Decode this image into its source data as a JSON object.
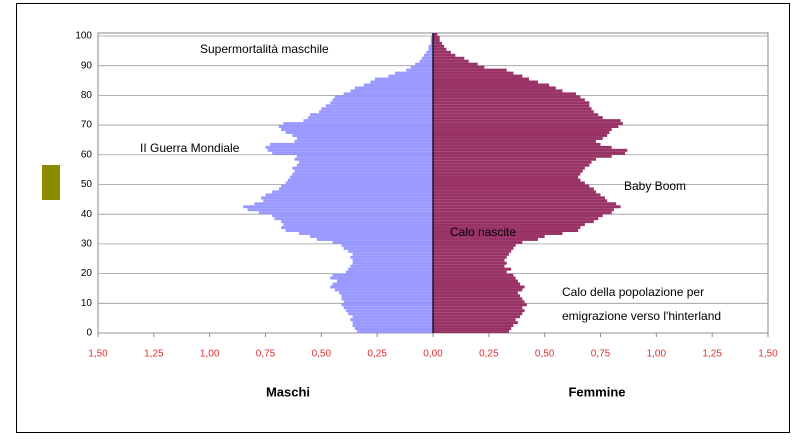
{
  "chart_data": {
    "type": "pyramid",
    "y": [
      0,
      1,
      2,
      3,
      4,
      5,
      6,
      7,
      8,
      9,
      10,
      11,
      12,
      13,
      14,
      15,
      16,
      17,
      18,
      19,
      20,
      21,
      22,
      23,
      24,
      25,
      26,
      27,
      28,
      29,
      30,
      31,
      32,
      33,
      34,
      35,
      36,
      37,
      38,
      39,
      40,
      41,
      42,
      43,
      44,
      45,
      46,
      47,
      48,
      49,
      50,
      51,
      52,
      53,
      54,
      55,
      56,
      57,
      58,
      59,
      60,
      61,
      62,
      63,
      64,
      65,
      66,
      67,
      68,
      69,
      70,
      71,
      72,
      73,
      74,
      75,
      76,
      77,
      78,
      79,
      80,
      81,
      82,
      83,
      84,
      85,
      86,
      87,
      88,
      89,
      90,
      91,
      92,
      93,
      94,
      95,
      96,
      97,
      98,
      99,
      100
    ],
    "series": [
      {
        "name": "Maschi",
        "color": "#9999ff",
        "side": "left",
        "values": [
          0.34,
          0.35,
          0.36,
          0.36,
          0.37,
          0.36,
          0.38,
          0.39,
          0.4,
          0.41,
          0.4,
          0.41,
          0.41,
          0.42,
          0.44,
          0.46,
          0.45,
          0.43,
          0.46,
          0.45,
          0.39,
          0.38,
          0.37,
          0.36,
          0.36,
          0.37,
          0.36,
          0.38,
          0.4,
          0.41,
          0.45,
          0.52,
          0.55,
          0.6,
          0.66,
          0.68,
          0.67,
          0.68,
          0.71,
          0.72,
          0.78,
          0.83,
          0.85,
          0.8,
          0.76,
          0.77,
          0.75,
          0.72,
          0.69,
          0.68,
          0.66,
          0.65,
          0.64,
          0.63,
          0.62,
          0.63,
          0.61,
          0.6,
          0.62,
          0.61,
          0.72,
          0.74,
          0.75,
          0.73,
          0.62,
          0.61,
          0.63,
          0.66,
          0.68,
          0.69,
          0.67,
          0.58,
          0.56,
          0.55,
          0.51,
          0.5,
          0.48,
          0.46,
          0.45,
          0.44,
          0.4,
          0.37,
          0.35,
          0.31,
          0.28,
          0.26,
          0.2,
          0.17,
          0.12,
          0.1,
          0.08,
          0.06,
          0.05,
          0.04,
          0.03,
          0.02,
          0.02,
          0.01,
          0.01,
          0.01,
          0.005
        ]
      },
      {
        "name": "Femmine",
        "color": "#993366",
        "side": "right",
        "values": [
          0.34,
          0.35,
          0.36,
          0.38,
          0.37,
          0.39,
          0.4,
          0.41,
          0.4,
          0.42,
          0.41,
          0.4,
          0.39,
          0.38,
          0.4,
          0.41,
          0.39,
          0.38,
          0.37,
          0.36,
          0.33,
          0.35,
          0.32,
          0.33,
          0.32,
          0.33,
          0.34,
          0.35,
          0.36,
          0.37,
          0.4,
          0.47,
          0.5,
          0.58,
          0.65,
          0.66,
          0.68,
          0.72,
          0.74,
          0.76,
          0.8,
          0.81,
          0.84,
          0.82,
          0.78,
          0.77,
          0.75,
          0.73,
          0.72,
          0.7,
          0.68,
          0.66,
          0.65,
          0.66,
          0.67,
          0.68,
          0.7,
          0.71,
          0.73,
          0.8,
          0.86,
          0.87,
          0.8,
          0.75,
          0.73,
          0.76,
          0.78,
          0.79,
          0.8,
          0.83,
          0.85,
          0.84,
          0.76,
          0.74,
          0.72,
          0.71,
          0.7,
          0.7,
          0.68,
          0.66,
          0.64,
          0.58,
          0.55,
          0.52,
          0.47,
          0.43,
          0.4,
          0.36,
          0.33,
          0.23,
          0.2,
          0.16,
          0.14,
          0.1,
          0.08,
          0.06,
          0.05,
          0.04,
          0.03,
          0.03,
          0.02
        ]
      }
    ],
    "xlim": [
      -1.5,
      1.5
    ],
    "xticks": [
      {
        "value": -1.5,
        "label": "1,50"
      },
      {
        "value": -1.25,
        "label": "1,25"
      },
      {
        "value": -1.0,
        "label": "1,00"
      },
      {
        "value": -0.75,
        "label": "0,75"
      },
      {
        "value": -0.5,
        "label": "0,50"
      },
      {
        "value": -0.25,
        "label": "0,25"
      },
      {
        "value": 0,
        "label": "0,00"
      },
      {
        "value": 0.25,
        "label": "0,25"
      },
      {
        "value": 0.5,
        "label": "0,50"
      },
      {
        "value": 0.75,
        "label": "0,75"
      },
      {
        "value": 1.0,
        "label": "1,00"
      },
      {
        "value": 1.25,
        "label": "1,25"
      },
      {
        "value": 1.5,
        "label": "1,50"
      }
    ],
    "ylim": [
      0,
      101
    ],
    "yticks": [
      0,
      10,
      20,
      30,
      40,
      50,
      60,
      70,
      80,
      90,
      100
    ],
    "grid": true,
    "annotations": [
      "Supermortalità maschile",
      "II  Guerra Mondiale",
      "Baby Boom",
      "Calo nascite",
      "Calo della popolazione per",
      "emigrazione verso l'hinterland"
    ]
  }
}
